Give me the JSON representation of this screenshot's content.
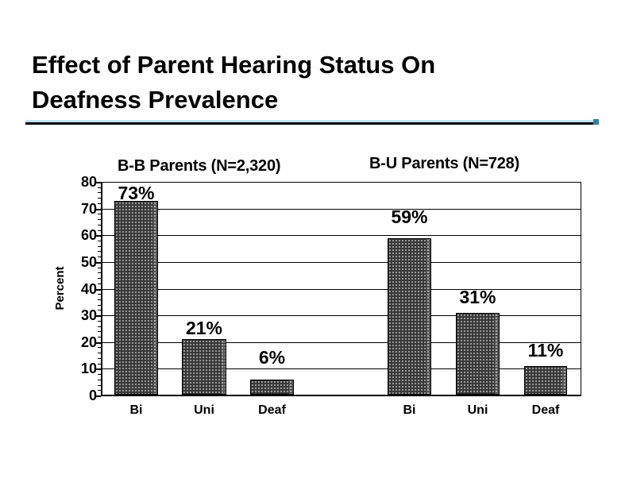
{
  "slide": {
    "title_line1": "Effect of Parent Hearing Status On",
    "title_line2": "Deafness Prevalence"
  },
  "divider": {
    "light_blue": "#c2e4f0",
    "black": "#000000",
    "end_cap_teal": "#2e7f9e"
  },
  "chart_data": {
    "type": "bar",
    "title": "",
    "ylabel": "Percent",
    "xlabel": "",
    "ylim": [
      0,
      80
    ],
    "ytick_step": 10,
    "minor_tick_step": 2,
    "yticks": [
      0,
      10,
      20,
      30,
      40,
      50,
      60,
      70,
      80
    ],
    "grid": "horizontal-major",
    "legend_position": "none",
    "bar_fill": {
      "color": "#383838",
      "pattern": "white-dot-grid",
      "border": "#000000"
    },
    "groups": [
      {
        "header": "B-B Parents (N=2,320)",
        "categories": [
          "Bi",
          "Uni",
          "Deaf"
        ],
        "values": [
          73,
          21,
          6
        ],
        "data_labels": [
          "73%",
          "21%",
          "6%"
        ]
      },
      {
        "header": "B-U Parents (N=728)",
        "categories": [
          "Bi",
          "Uni",
          "Deaf"
        ],
        "values": [
          59,
          31,
          11
        ],
        "data_labels": [
          "59%",
          "31%",
          "11%"
        ]
      }
    ]
  }
}
